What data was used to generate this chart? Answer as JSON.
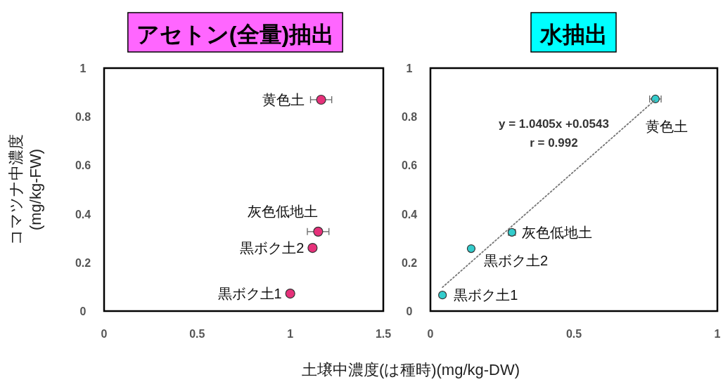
{
  "chart_data": [
    {
      "type": "scatter",
      "title": "アセトン(全量)抽出",
      "ylabel": "コマツナ中濃度\n(mg/kg-FW)",
      "xlabel": "土壌中濃度(は種時)(mg/kg-DW)",
      "marker": "circle",
      "xlim": [
        0,
        1.5
      ],
      "xticks": [
        0,
        0.5,
        1,
        1.5
      ],
      "ylim": [
        0,
        1
      ],
      "yticks": [
        0,
        0.2,
        0.4,
        0.6,
        0.8,
        1
      ],
      "series": [
        {
          "color": "#e6317a",
          "x": [
            1.166,
            1.15,
            1.12,
            1.0
          ],
          "values": [
            0.87,
            0.327,
            0.26,
            0.072
          ],
          "xerrors": [
            0.057,
            0.058,
            null,
            null
          ]
        }
      ],
      "annotations": [
        {
          "text": "黄色土",
          "x": 1.166,
          "y": 0.87
        },
        {
          "text": "灰色低地土",
          "x": 1.15,
          "y": 0.327
        },
        {
          "text": "黒ボク土2",
          "x": 1.12,
          "y": 0.26
        },
        {
          "text": "黒ボク土1",
          "x": 1.0,
          "y": 0.072
        }
      ]
    },
    {
      "type": "scatter",
      "title": "水抽出",
      "xlim": [
        0,
        1
      ],
      "xticks": [
        0,
        0.5,
        1
      ],
      "ylim": [
        0,
        1
      ],
      "yticks": [
        0,
        0.2,
        0.4,
        0.6,
        0.8,
        1
      ],
      "series": [
        {
          "marker": "circle",
          "color": "#33cccc",
          "x": [
            0.784,
            0.284,
            0.142,
            0.042
          ],
          "values": [
            0.873,
            0.324,
            0.257,
            0.066
          ],
          "xerrors": [
            0.02,
            0.012,
            null,
            null
          ]
        },
        {
          "type": "line",
          "line_style": "dotted",
          "marker": "none",
          "color": "#777777",
          "x": [
            0.042,
            0.784
          ],
          "values": [
            0.098,
            0.87
          ]
        }
      ],
      "annotations": [
        {
          "text": "黄色土",
          "x": 0.784,
          "y": 0.873
        },
        {
          "text": "灰色低地土",
          "x": 0.284,
          "y": 0.324
        },
        {
          "text": "黒ボク土2",
          "x": 0.142,
          "y": 0.257
        },
        {
          "text": "黒ボク土1",
          "x": 0.042,
          "y": 0.066
        },
        "y = 1.0405x +0.0543",
        "r = 0.992"
      ]
    }
  ]
}
